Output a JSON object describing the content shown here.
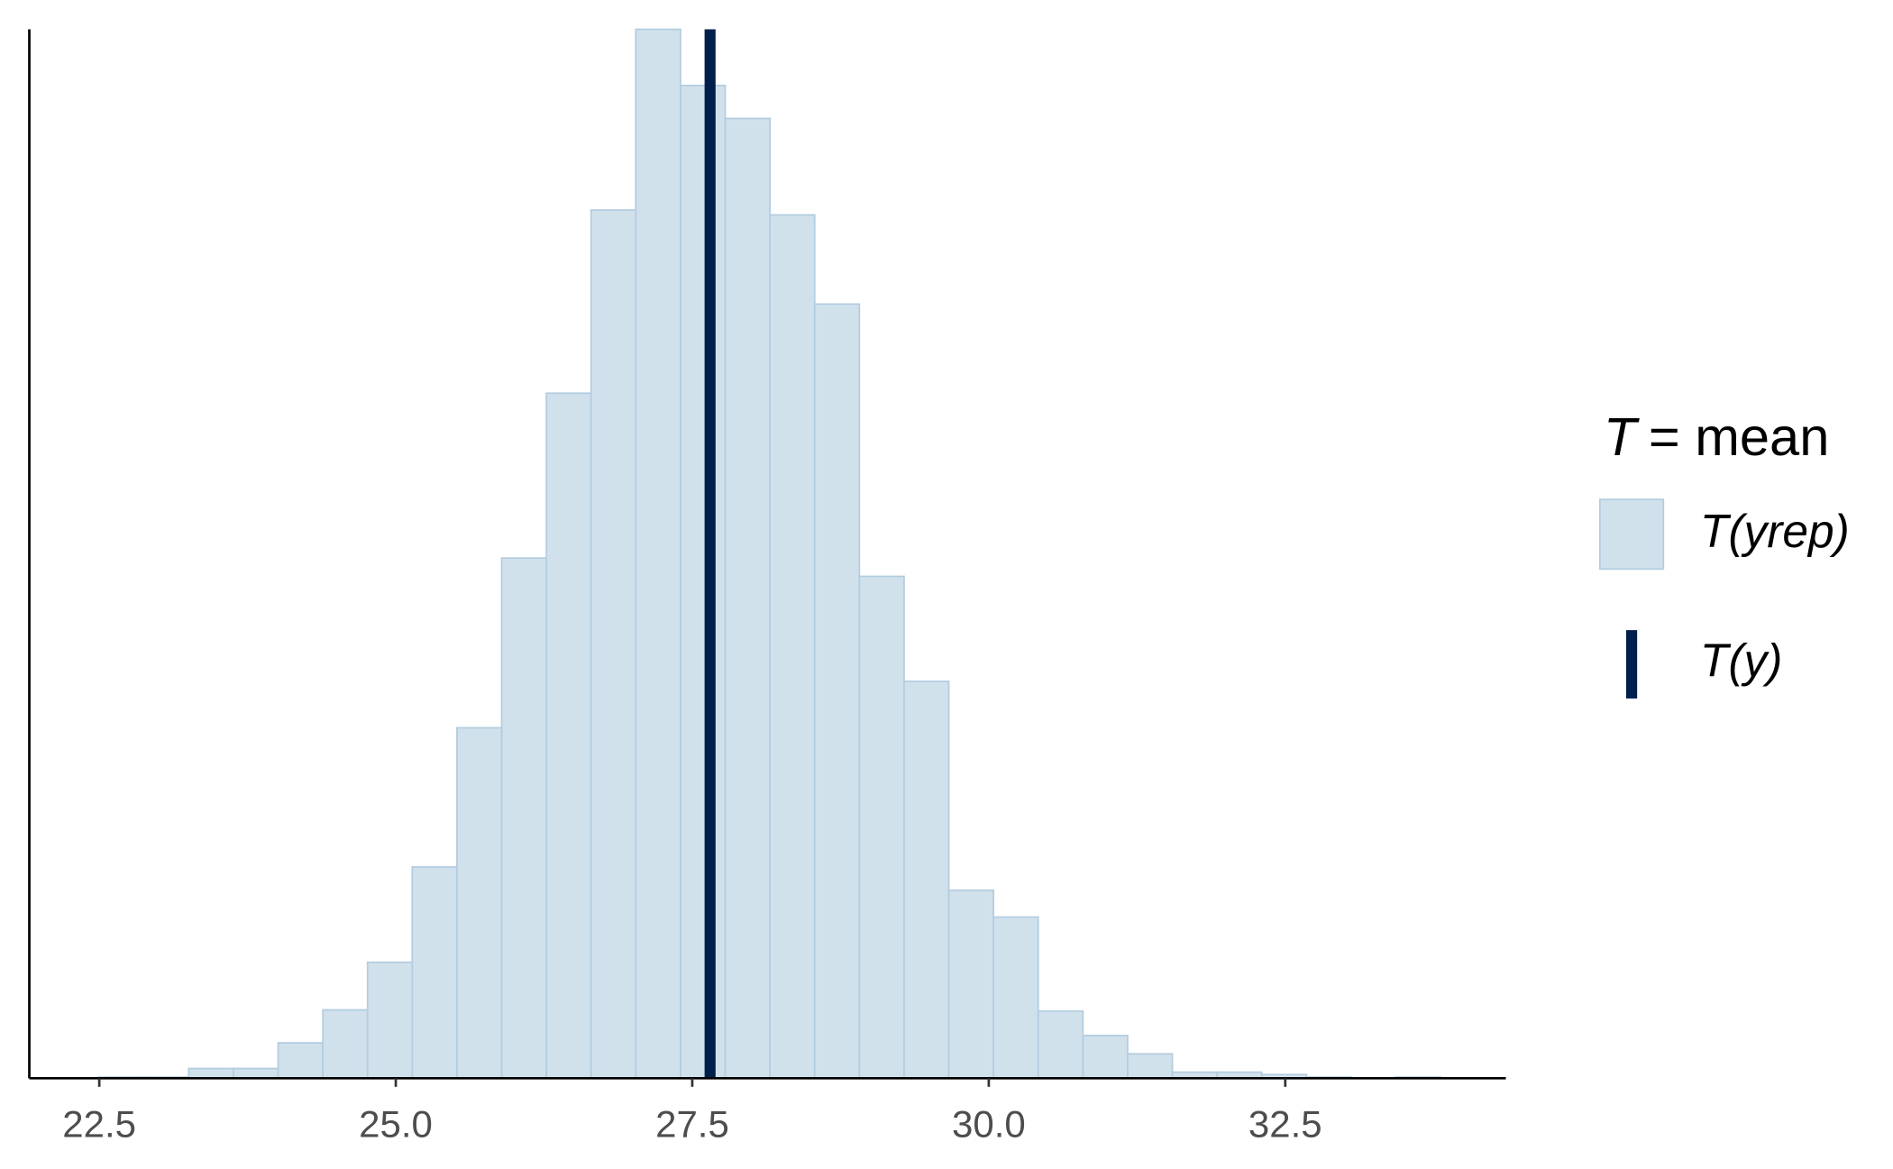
{
  "chart_data": {
    "type": "histogram",
    "bins": [
      22.5,
      22.877,
      23.254,
      23.631,
      24.008,
      24.385,
      24.762,
      25.139,
      25.516,
      25.893,
      26.27,
      26.647,
      27.024,
      27.401,
      27.778,
      28.155,
      28.532,
      28.909,
      29.286,
      29.663,
      30.04,
      30.417,
      30.794,
      31.171,
      31.548,
      31.925,
      32.302,
      32.679,
      33.056,
      33.433,
      33.81
    ],
    "values": [
      1,
      1,
      8,
      8,
      29,
      56,
      95,
      173,
      287,
      426,
      561,
      711,
      859,
      813,
      786,
      707,
      634,
      411,
      325,
      154,
      132,
      55,
      35,
      20,
      5,
      5,
      3,
      1,
      0,
      1
    ],
    "name": "T(yrep)",
    "color": "#d1e1ec",
    "edgecolor": "#b3cde0",
    "observed": {
      "name": "T(y)",
      "value": 27.65,
      "color": "#011f4b"
    },
    "legend_title": {
      "symbol": "T",
      "text": "= mean"
    },
    "legend": "right",
    "xlim": [
      21.91,
      34.36
    ],
    "ylim": [
      0,
      859
    ],
    "xticks": [
      22.5,
      {
        "value": 25,
        "label": "25.0"
      },
      27.5,
      {
        "value": 30,
        "label": "30.0"
      },
      32.5
    ]
  }
}
